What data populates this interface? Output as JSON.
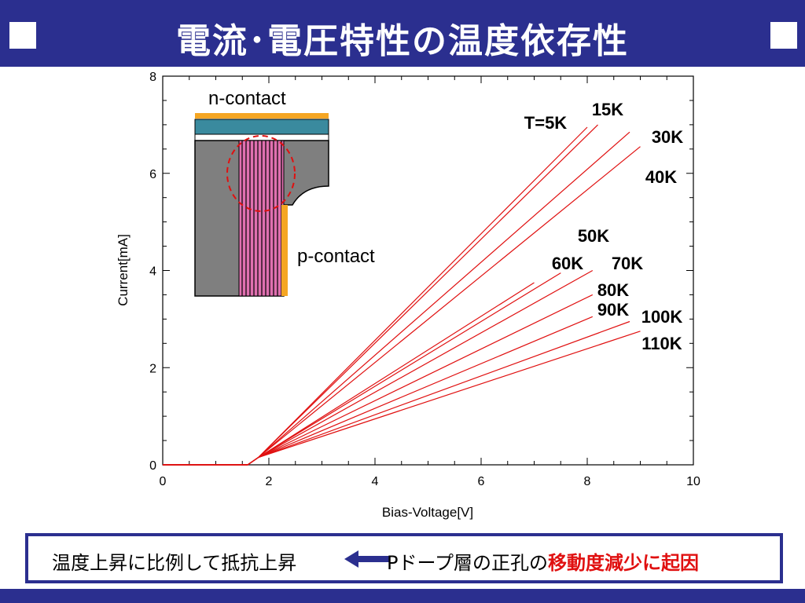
{
  "slide": {
    "title": "電流･電圧特性の温度依存性",
    "caption": {
      "left": "温度上昇に比例して抵抗上昇",
      "right_prefix": "Pドープ層の正孔の",
      "right_highlight": "移動度減少に起因"
    }
  },
  "inset": {
    "n_contact_label": "n-contact",
    "p_contact_label": "p-contact"
  },
  "colors": {
    "title_bar": "#2b2f8f",
    "curve": "#e01010",
    "highlight_text": "#e01010",
    "contact": "#f5a623",
    "n_layer": "#3a8a9e",
    "p_body": "#7f7f7f",
    "stripes": "#e070b0"
  },
  "chart_data": {
    "type": "line",
    "title": "",
    "xlabel": "Bias-Voltage[V]",
    "ylabel": "Current[mA]",
    "xlim": [
      0,
      10
    ],
    "ylim": [
      0,
      8
    ],
    "xticks": [
      0,
      2,
      4,
      6,
      8,
      10
    ],
    "yticks": [
      0,
      2,
      4,
      6,
      8
    ],
    "grid": false,
    "series": [
      {
        "name": "T=5K",
        "x": [
          0,
          1.6,
          1.8,
          8.0
        ],
        "y": [
          0,
          0,
          0.15,
          6.95
        ]
      },
      {
        "name": "15K",
        "x": [
          0,
          1.6,
          1.8,
          8.2
        ],
        "y": [
          0,
          0,
          0.15,
          7.0
        ]
      },
      {
        "name": "30K",
        "x": [
          0,
          1.6,
          1.8,
          8.8
        ],
        "y": [
          0,
          0,
          0.15,
          6.85
        ]
      },
      {
        "name": "40K",
        "x": [
          0,
          1.6,
          1.8,
          9.0
        ],
        "y": [
          0,
          0,
          0.15,
          6.55
        ]
      },
      {
        "name": "50K",
        "x": [
          0,
          1.6,
          1.8,
          7.0
        ],
        "y": [
          0,
          0,
          0.15,
          3.75
        ]
      },
      {
        "name": "60K",
        "x": [
          0,
          1.6,
          1.8,
          7.5
        ],
        "y": [
          0,
          0,
          0.15,
          3.95
        ]
      },
      {
        "name": "70K",
        "x": [
          0,
          1.6,
          1.8,
          8.1
        ],
        "y": [
          0,
          0,
          0.15,
          4.0
        ]
      },
      {
        "name": "80K",
        "x": [
          0,
          1.6,
          1.8,
          8.1
        ],
        "y": [
          0,
          0,
          0.15,
          3.5
        ]
      },
      {
        "name": "90K",
        "x": [
          0,
          1.6,
          1.8,
          8.1
        ],
        "y": [
          0,
          0,
          0.15,
          3.05
        ]
      },
      {
        "name": "100K",
        "x": [
          0,
          1.6,
          1.8,
          8.8
        ],
        "y": [
          0,
          0,
          0.15,
          2.95
        ]
      },
      {
        "name": "110K",
        "x": [
          0,
          1.6,
          1.8,
          9.0
        ],
        "y": [
          0,
          0,
          0.15,
          2.75
        ]
      }
    ]
  }
}
